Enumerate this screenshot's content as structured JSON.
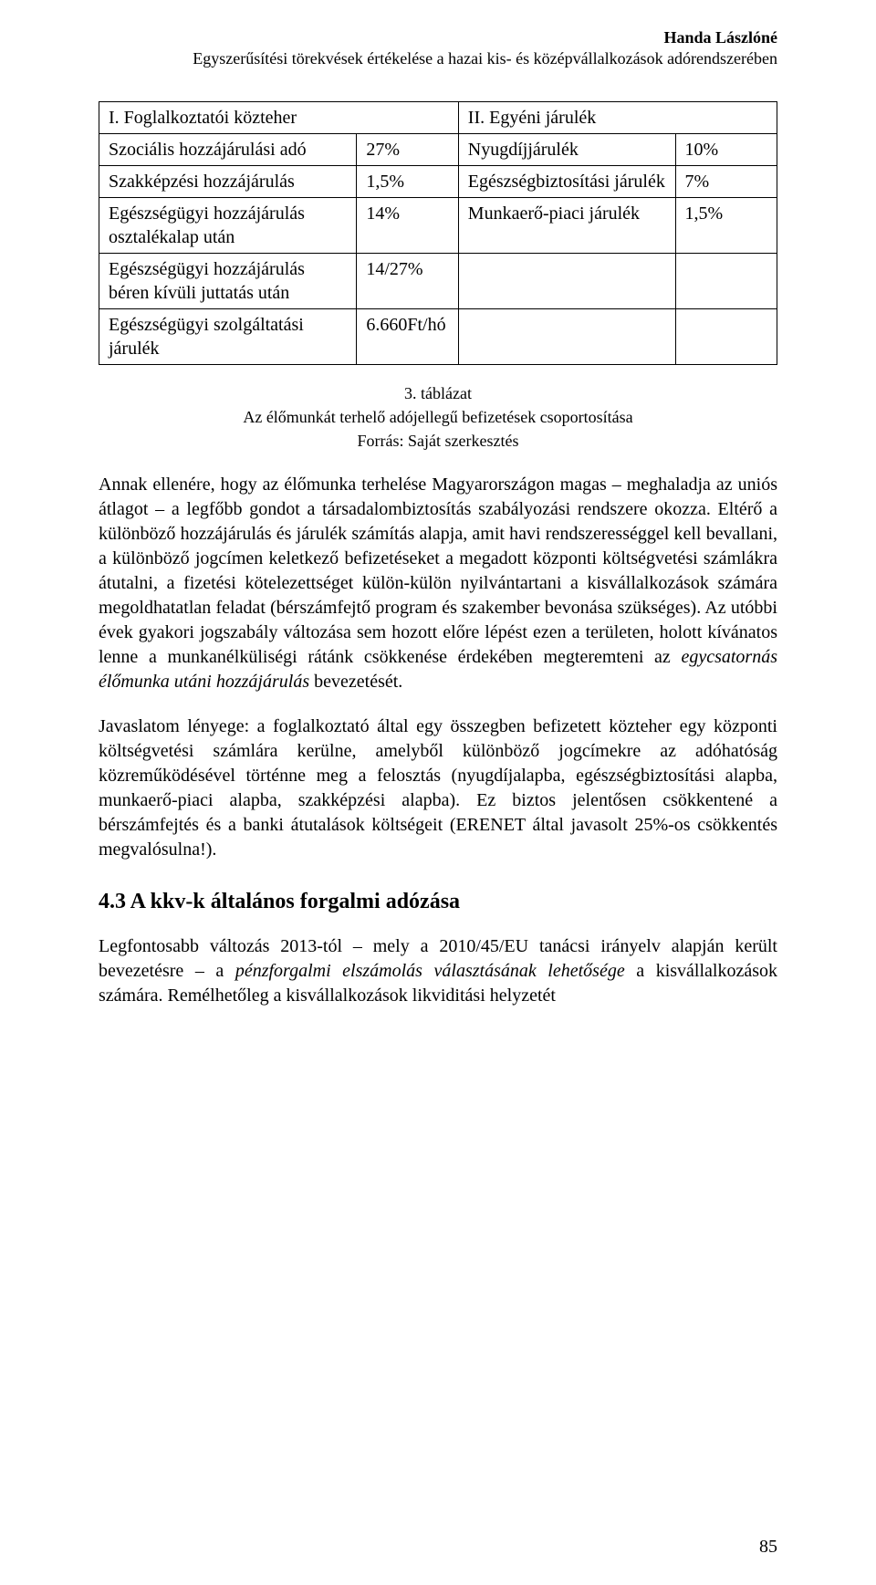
{
  "header": {
    "author": "Handa Lászlóné",
    "subtitle": "Egyszerűsítési törekvések értékelése a hazai kis- és középvállalkozások adórendszerében"
  },
  "table": {
    "col1_header": "I.   Foglalkoztatói közteher",
    "col3_header": "II. Egyéni járulék",
    "rows": [
      {
        "c1": "Szociális hozzájárulási adó",
        "c2": "27%",
        "c3": "Nyugdíjjárulék",
        "c4": "10%"
      },
      {
        "c1": "Szakképzési hozzájárulás",
        "c2": "1,5%",
        "c3": "Egészségbiztosítási járulék",
        "c4": "7%"
      },
      {
        "c1": "Egészségügyi hozzájárulás osztalékalap után",
        "c2": "14%",
        "c3": "Munkaerő-piaci járulék",
        "c4": "1,5%"
      },
      {
        "c1": "Egészségügyi hozzájárulás béren kívüli juttatás után",
        "c2": "14/27%",
        "c3": "",
        "c4": ""
      },
      {
        "c1": "Egészségügyi szolgáltatási járulék",
        "c2": "6.660Ft/hó",
        "c3": "",
        "c4": ""
      }
    ],
    "widths": [
      "38%",
      "15%",
      "32%",
      "15%"
    ]
  },
  "caption": {
    "line1": "3. táblázat",
    "line2": "Az élőmunkát terhelő adójellegű befizetések csoportosítása",
    "line3": "Forrás: Saját szerkesztés"
  },
  "paragraphs": {
    "p1_a": "Annak ellenére, hogy az élőmunka terhelése Magyarországon magas – meghaladja az uniós átlagot – a legfőbb gondot a társadalombiztosítás szabályozási rendszere okozza. Eltérő a különböző hozzájárulás és járulék számítás alapja, amit havi rendszerességgel kell bevallani, a különböző jogcímen keletkező befizetéseket a megadott központi költségvetési számlákra átutalni, a fizetési kötelezettséget külön-külön nyilvántartani a kisvállalkozások számára megoldhatatlan feladat (bérszámfejtő program és szakember bevonása szükséges). Az utóbbi évek gyakori jogszabály változása sem hozott előre lépést ezen a területen, holott kívánatos lenne a munkanélküliségi rátánk csökkenése érdekében megteremteni az ",
    "p1_em": "egycsatornás élőmunka utáni hozzájárulás",
    "p1_b": " bevezetését.",
    "p2": "Javaslatom lényege: a foglalkoztató által egy összegben befizetett közteher egy központi költségvetési számlára kerülne, amelyből különböző jogcímekre az adóhatóság közreműködésével történne meg a felosztás (nyugdíjalapba, egészségbiztosítási alapba, munkaerő-piaci alapba, szakképzési alapba). Ez biztos jelentősen csökkentené a bérszámfejtés és a banki átutalások költségeit (ERENET által javasolt 25%-os csökkentés megvalósulna!).",
    "p3_a": "Legfontosabb változás 2013-tól – mely a 2010/45/EU tanácsi irányelv alapján került bevezetésre – a ",
    "p3_em": "pénzforgalmi elszámolás választásának lehetősége",
    "p3_b": " a kisvállalkozások számára. Remélhetőleg a kisvállalkozások likviditási helyzetét"
  },
  "section_heading": "4.3   A kkv-k általános forgalmi adózása",
  "page_number": "85"
}
